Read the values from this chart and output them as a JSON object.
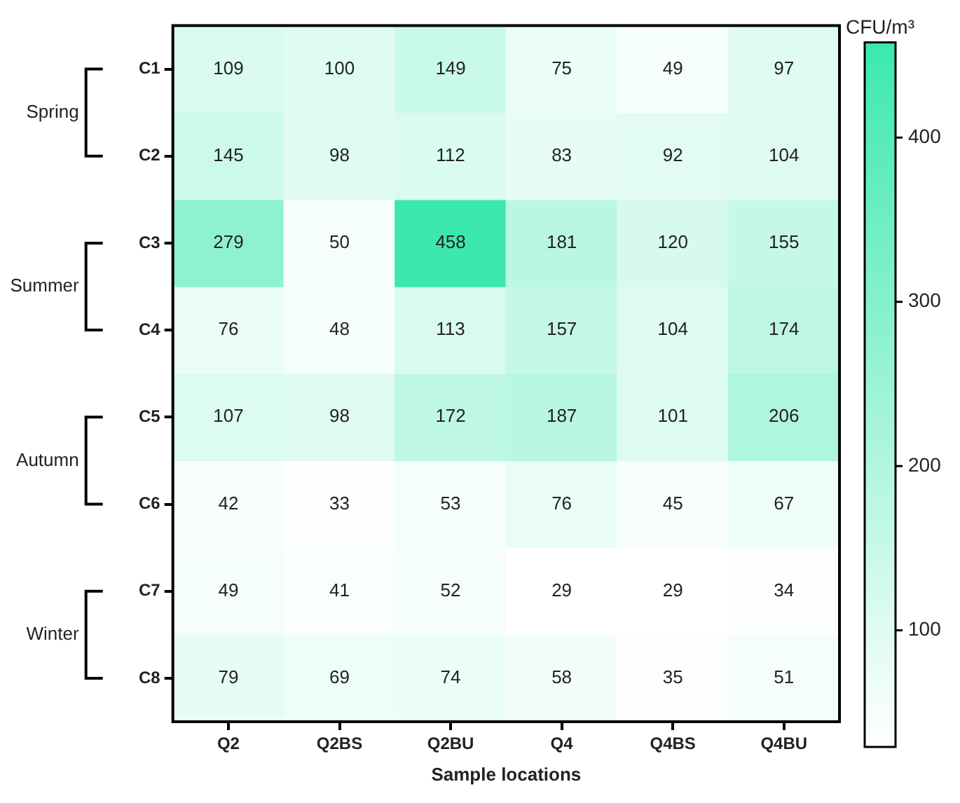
{
  "chart_data": {
    "type": "heatmap",
    "xlabel": "Sample locations",
    "clabel": "CFU/m³",
    "categories": [
      "Q2",
      "Q2BS",
      "Q2BU",
      "Q4",
      "Q4BS",
      "Q4BU"
    ],
    "y_categories": [
      "C1",
      "C2",
      "C3",
      "C4",
      "C5",
      "C6",
      "C7",
      "C8"
    ],
    "cells": [
      [
        109,
        100,
        149,
        75,
        49,
        97
      ],
      [
        145,
        98,
        112,
        83,
        92,
        104
      ],
      [
        279,
        50,
        458,
        181,
        120,
        155
      ],
      [
        76,
        48,
        113,
        157,
        104,
        174
      ],
      [
        107,
        98,
        172,
        187,
        101,
        206
      ],
      [
        42,
        33,
        53,
        76,
        45,
        67
      ],
      [
        49,
        41,
        52,
        29,
        29,
        34
      ],
      [
        79,
        69,
        74,
        58,
        35,
        51
      ]
    ],
    "data_labels": true,
    "clim": [
      29,
      458
    ],
    "cticks": [
      100,
      200,
      300,
      400
    ],
    "annotations": [
      "Spring",
      "Summer",
      "Autumn",
      "Winter"
    ]
  }
}
